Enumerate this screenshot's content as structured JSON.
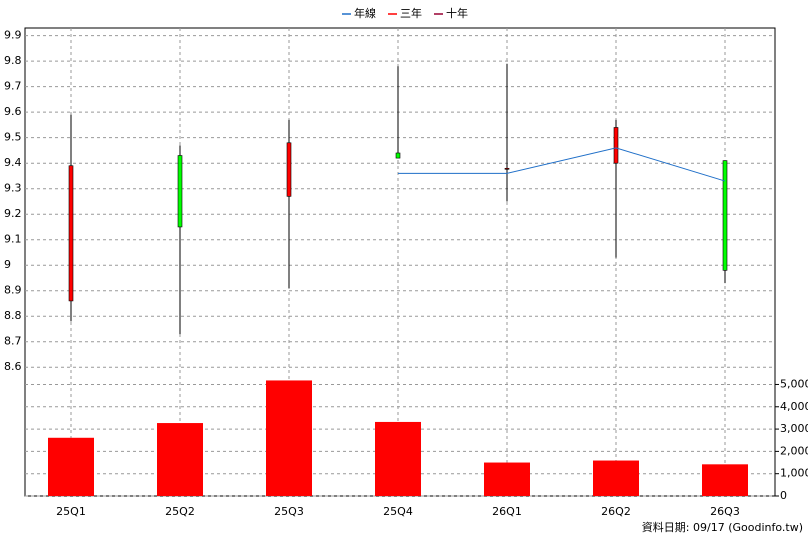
{
  "chart_data": {
    "type": "candlestick",
    "categories": [
      "25Q1",
      "25Q2",
      "25Q3",
      "25Q4",
      "26Q1",
      "26Q2",
      "26Q3"
    ],
    "open": [
      8.86,
      9.43,
      9.27,
      9.44,
      9.38,
      9.4,
      9.41
    ],
    "high": [
      9.59,
      9.47,
      9.57,
      9.78,
      9.79,
      9.57,
      9.41
    ],
    "low": [
      8.78,
      8.73,
      8.91,
      9.42,
      9.25,
      9.03,
      8.93
    ],
    "close": [
      9.39,
      9.15,
      9.48,
      9.42,
      9.38,
      9.54,
      8.98
    ],
    "up_color": "#ff0000",
    "down_color": "#00ff00",
    "series": [
      {
        "name": "年線",
        "color": "#1f6fc8",
        "values": [
          null,
          null,
          null,
          9.36,
          9.36,
          9.46,
          9.33
        ]
      },
      {
        "name": "三年",
        "color": "#ff0000",
        "values": [
          null,
          null,
          null,
          null,
          null,
          null,
          null
        ]
      },
      {
        "name": "十年",
        "color": "#990033",
        "values": [
          null,
          null,
          null,
          null,
          null,
          null,
          null
        ]
      }
    ],
    "ylim": [
      8.55,
      9.93
    ],
    "yticks": [
      8.6,
      8.7,
      8.8,
      8.9,
      9,
      9.1,
      9.2,
      9.3,
      9.4,
      9.5,
      9.6,
      9.7,
      9.8,
      9.9
    ],
    "volume": {
      "color": "#ff0000",
      "values": [
        2610,
        3270,
        5180,
        3320,
        1500,
        1590,
        1420
      ],
      "ylim": [
        0,
        5200
      ],
      "yticks": [
        0,
        {
          "value": 1000,
          "label": "1,000"
        },
        {
          "value": 2000,
          "label": "2,000"
        },
        {
          "value": 3000,
          "label": "3,000"
        },
        {
          "value": 4000,
          "label": "4,000"
        },
        {
          "value": 5000,
          "label": "5,000"
        }
      ]
    },
    "grid": true,
    "footer": "資料日期: 09/17  (Goodinfo.tw)"
  }
}
